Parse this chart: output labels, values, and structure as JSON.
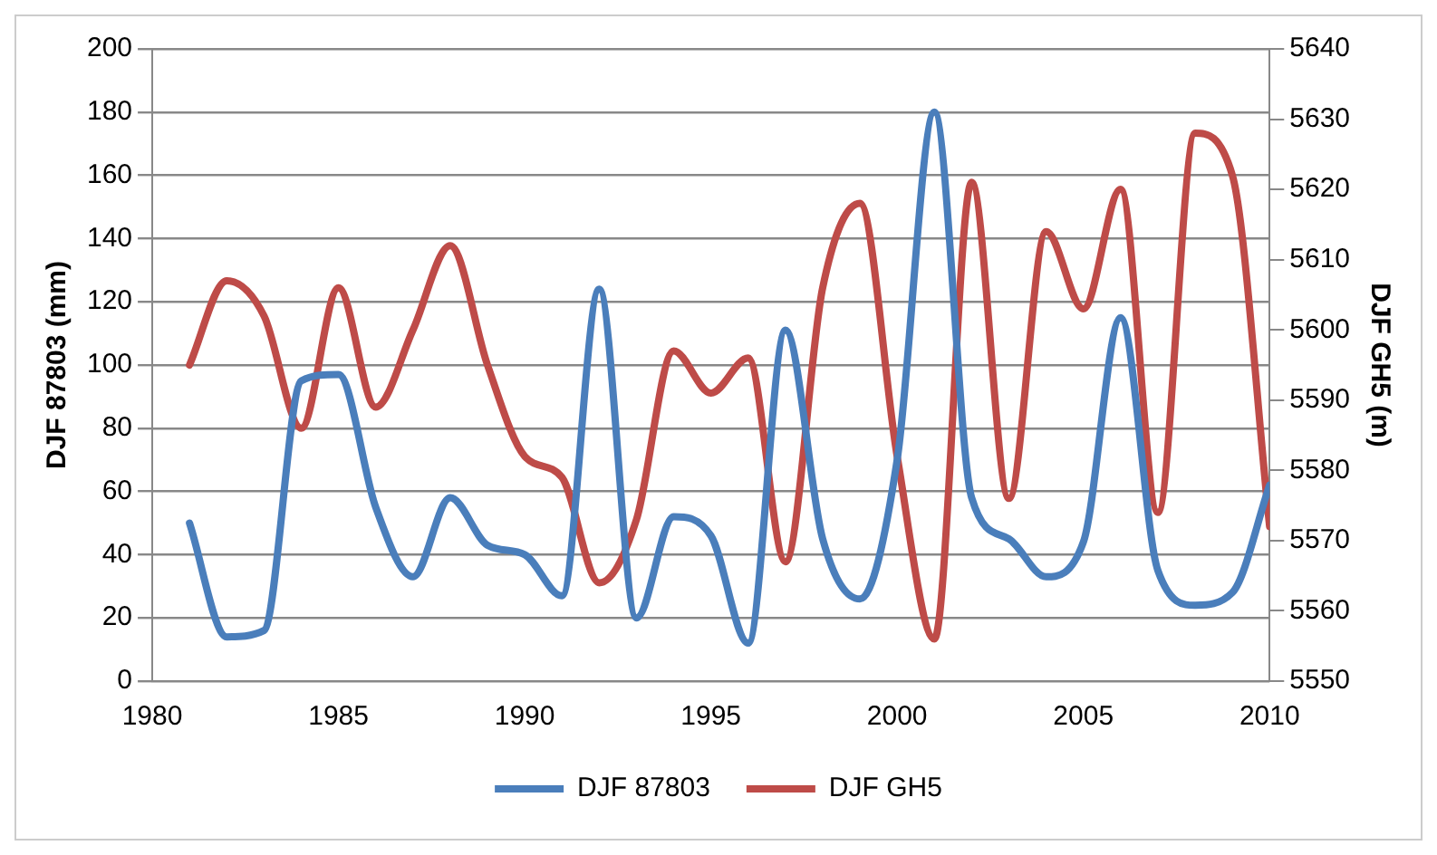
{
  "chart_data": {
    "type": "line",
    "xlabel": null,
    "ylabel": "DJF 87803 (mm)",
    "y2label": "DJF GH5 (m)",
    "x": [
      1981,
      1982,
      1983,
      1984,
      1985,
      1986,
      1987,
      1988,
      1989,
      1990,
      1991,
      1992,
      1993,
      1994,
      1995,
      1996,
      1997,
      1998,
      1999,
      2000,
      2001,
      2002,
      2003,
      2004,
      2005,
      2006,
      2007,
      2008,
      2009,
      2010
    ],
    "series": [
      {
        "name": "DJF 87803",
        "color": "#4a7ebb",
        "values": [
          50,
          14,
          16,
          95,
          97,
          55,
          33,
          58,
          43,
          40,
          27,
          124,
          20,
          52,
          46,
          12,
          111,
          45,
          26,
          70,
          180,
          58,
          45,
          33,
          44,
          115,
          35,
          24,
          28,
          62
        ]
      },
      {
        "name": "DJF GH5",
        "color": "#be4b48",
        "axis": "y2",
        "values": [
          5595,
          5607,
          5602,
          5586,
          5606,
          5589,
          5600,
          5612,
          5595,
          5582,
          5579,
          5564,
          5573,
          5597,
          5591,
          5596,
          5567,
          5606,
          5618,
          5582,
          5556,
          5621,
          5576,
          5614,
          5603,
          5620,
          5574,
          5628,
          5622,
          5572
        ]
      }
    ],
    "xlim": [
      1980,
      2010
    ],
    "xticks": [
      1980,
      1985,
      1990,
      1995,
      2000,
      2005,
      2010
    ],
    "ylim": [
      0,
      200
    ],
    "yticks": [
      0,
      20,
      40,
      60,
      80,
      100,
      120,
      140,
      160,
      180,
      200
    ],
    "y2lim": [
      5550,
      5640
    ],
    "y2ticks": [
      5550,
      5560,
      5570,
      5580,
      5590,
      5600,
      5610,
      5620,
      5630,
      5640
    ],
    "grid": "y",
    "legend": "bottom",
    "marker": "none",
    "line_style": "solid"
  }
}
